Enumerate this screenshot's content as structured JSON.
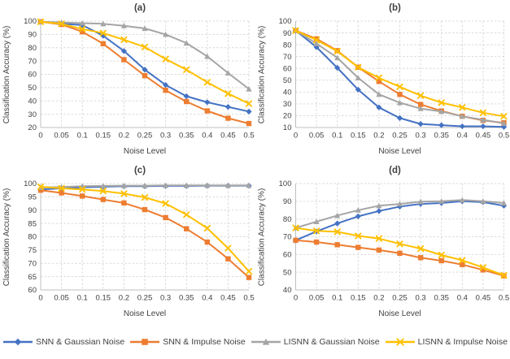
{
  "style": {
    "text_color": "#404040",
    "gridline_color": "#D9D9D9",
    "axis_color": "#BFBFBF",
    "background": "#FFFFFF"
  },
  "legend": {
    "position": "bottom",
    "items": [
      {
        "label": "SNN & Gaussian Noise",
        "color": "#4472C4",
        "marker": "diamond"
      },
      {
        "label": "SNN & Impulse Noise",
        "color": "#ED7D31",
        "marker": "square"
      },
      {
        "label": "LISNN & Gaussian Noise",
        "color": "#A5A5A5",
        "marker": "triangle"
      },
      {
        "label": "LISNN & Impulse Noise",
        "color": "#FFC000",
        "marker": "x"
      }
    ]
  },
  "chart_data": [
    {
      "type": "line",
      "title": "(a)",
      "xlabel": "Noise Level",
      "ylabel": "Classification Accuracy (%)",
      "grid": true,
      "x": [
        0,
        0.05,
        0.1,
        0.15,
        0.2,
        0.25,
        0.3,
        0.35,
        0.4,
        0.45,
        0.5
      ],
      "ylim": [
        20,
        100
      ],
      "ytick_step": 10,
      "series": [
        {
          "name": "SNN & Gaussian Noise",
          "values": [
            99.5,
            98,
            97,
            89,
            77.5,
            63.5,
            52,
            43.5,
            39,
            35.5,
            32
          ]
        },
        {
          "name": "SNN & Impulse Noise",
          "values": [
            99.5,
            97.5,
            92,
            83,
            71,
            59,
            48,
            39.5,
            32.5,
            27,
            23
          ]
        },
        {
          "name": "LISNN & Gaussian Noise",
          "values": [
            99.5,
            99,
            98.5,
            98,
            96.5,
            94.5,
            90,
            83.5,
            73.5,
            61,
            49
          ]
        },
        {
          "name": "LISNN & Impulse Noise",
          "values": [
            99.5,
            98,
            94,
            91,
            86,
            80.5,
            71.5,
            63.5,
            54,
            45.5,
            38
          ]
        }
      ]
    },
    {
      "type": "line",
      "title": "(b)",
      "xlabel": "Noise Level",
      "ylabel": "Classification Accuracy (%)",
      "grid": true,
      "x": [
        0,
        0.05,
        0.1,
        0.15,
        0.2,
        0.25,
        0.3,
        0.35,
        0.4,
        0.45,
        0.5
      ],
      "ylim": [
        10,
        100
      ],
      "ytick_step": 10,
      "series": [
        {
          "name": "SNN & Gaussian Noise",
          "values": [
            92,
            78,
            60.5,
            42,
            27,
            18,
            13,
            12,
            11,
            11,
            10.5
          ]
        },
        {
          "name": "SNN & Impulse Noise",
          "values": [
            92,
            85,
            75,
            61,
            49,
            38,
            29.5,
            24,
            19.5,
            16,
            14
          ]
        },
        {
          "name": "LISNN & Gaussian Noise",
          "values": [
            92,
            81,
            69,
            52,
            38,
            31,
            26,
            23.5,
            19.5,
            16.5,
            13.5
          ]
        },
        {
          "name": "LISNN & Impulse Noise",
          "values": [
            92,
            84,
            74.5,
            61,
            52,
            44.5,
            37,
            31,
            27,
            22.5,
            19.5
          ]
        }
      ]
    },
    {
      "type": "line",
      "title": "(c)",
      "xlabel": "Noise Level",
      "ylabel": "Classification Accuracy (%)",
      "grid": true,
      "x": [
        0,
        0.05,
        0.1,
        0.15,
        0.2,
        0.25,
        0.3,
        0.35,
        0.4,
        0.45,
        0.5
      ],
      "ylim": [
        60,
        100
      ],
      "ytick_step": 5,
      "series": [
        {
          "name": "SNN & Gaussian Noise",
          "values": [
            97.8,
            98.2,
            98.6,
            98.8,
            99,
            99,
            99.1,
            99.1,
            99.2,
            99.2,
            99.2
          ]
        },
        {
          "name": "SNN & Impulse Noise",
          "values": [
            97.5,
            96.5,
            95.3,
            94,
            92.7,
            90.2,
            87.2,
            83,
            78,
            71.7,
            64.7
          ]
        },
        {
          "name": "LISNN & Gaussian Noise",
          "values": [
            98.5,
            98.7,
            99,
            99.1,
            99.2,
            99.2,
            99.3,
            99.3,
            99.3,
            99.3,
            99.3
          ]
        },
        {
          "name": "LISNN & Impulse Noise",
          "values": [
            98.8,
            98.2,
            97.8,
            97.2,
            96.2,
            94.8,
            92.5,
            88.3,
            83.2,
            75.7,
            67
          ]
        }
      ]
    },
    {
      "type": "line",
      "title": "(d)",
      "xlabel": "Noise Level",
      "ylabel": "Classification Accuracy (%)",
      "grid": true,
      "x": [
        0,
        0.05,
        0.1,
        0.15,
        0.2,
        0.25,
        0.3,
        0.35,
        0.4,
        0.45,
        0.5
      ],
      "ylim": [
        40,
        100
      ],
      "ytick_step": 10,
      "series": [
        {
          "name": "SNN & Gaussian Noise",
          "values": [
            68,
            73,
            77.5,
            81.5,
            84.5,
            87,
            88.5,
            89,
            90,
            89.5,
            87.5
          ]
        },
        {
          "name": "SNN & Impulse Noise",
          "values": [
            68,
            67,
            65.5,
            64,
            62.5,
            60.7,
            58.2,
            56.5,
            54.3,
            51.3,
            48
          ]
        },
        {
          "name": "LISNN & Gaussian Noise",
          "values": [
            75,
            78.5,
            82,
            85,
            87.5,
            88.5,
            89.8,
            90,
            90.7,
            90,
            89
          ]
        },
        {
          "name": "LISNN & Impulse Noise",
          "values": [
            75,
            73.3,
            72.8,
            70.5,
            69,
            66,
            63.3,
            59.7,
            56.7,
            52.7,
            48.3
          ]
        }
      ]
    }
  ]
}
